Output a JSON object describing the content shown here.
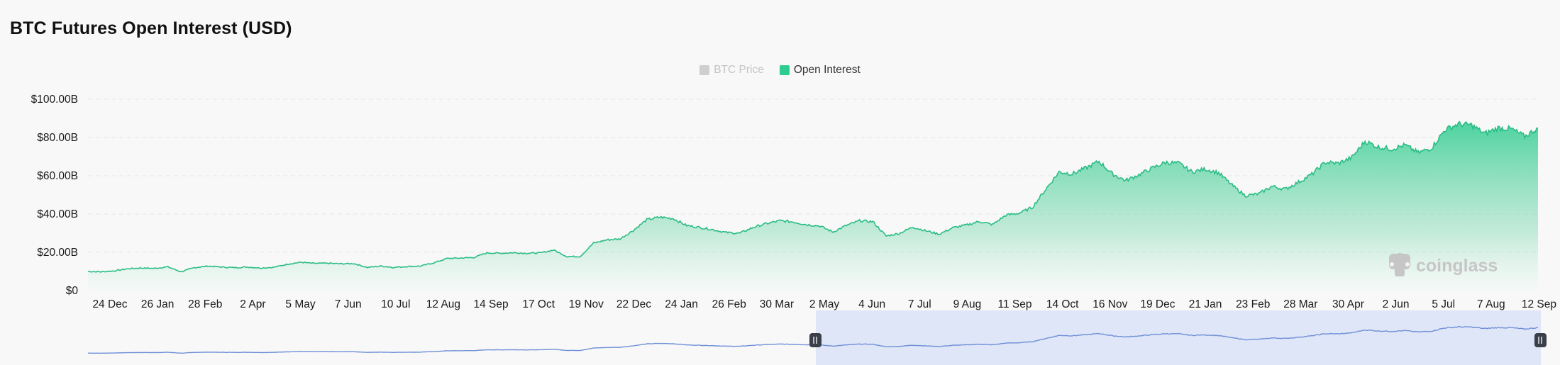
{
  "page": {
    "title": "BTC Futures Open Interest (USD)"
  },
  "legend": {
    "btc_price": "BTC Price",
    "open_interest": "Open Interest"
  },
  "watermark": "coinglass",
  "colors": {
    "oi_line": "#2bbd85",
    "oi_fill_top": "#2ecc8f",
    "legend_inactive": "#cfcfcf",
    "navigator_line": "#6f8fd8",
    "navigator_selection": "#dfe6f7"
  },
  "chart_data": {
    "type": "area",
    "title": "BTC Futures Open Interest (USD)",
    "ylim": [
      0,
      100
    ],
    "y_ticks": [
      "$0",
      "$20.00B",
      "$40.00B",
      "$60.00B",
      "$80.00B",
      "$100.00B"
    ],
    "x_ticks": [
      "24 Dec",
      "26 Jan",
      "28 Feb",
      "2 Apr",
      "5 May",
      "7 Jun",
      "10 Jul",
      "12 Aug",
      "14 Sep",
      "17 Oct",
      "19 Nov",
      "22 Dec",
      "24 Jan",
      "26 Feb",
      "30 Mar",
      "2 May",
      "4 Jun",
      "7 Jul",
      "9 Aug",
      "11 Sep",
      "14 Oct",
      "16 Nov",
      "19 Dec",
      "21 Jan",
      "23 Feb",
      "28 Mar",
      "30 Apr",
      "2 Jun",
      "5 Jul",
      "7 Aug",
      "12 Sep"
    ],
    "grid": true,
    "legend_position": "top-center",
    "series": [
      {
        "name": "BTC Price",
        "visible": false,
        "values": []
      },
      {
        "name": "Open Interest",
        "unit": "USD billions",
        "values": [
          10.0,
          9.8,
          10.3,
          11.4,
          11.8,
          11.6,
          12.4,
          9.8,
          12.0,
          12.8,
          12.3,
          12.0,
          12.3,
          11.8,
          12.2,
          13.8,
          14.8,
          14.2,
          14.3,
          14.0,
          14.1,
          12.1,
          12.8,
          12.1,
          12.6,
          12.8,
          14.5,
          16.8,
          17.0,
          17.3,
          19.7,
          19.5,
          19.8,
          19.5,
          19.7,
          21.2,
          17.8,
          17.8,
          24.8,
          26.5,
          27.0,
          31.5,
          37.0,
          38.4,
          37.6,
          34.0,
          33.0,
          31.8,
          30.3,
          30.0,
          33.0,
          35.0,
          36.5,
          35.9,
          34.5,
          33.8,
          30.6,
          34.0,
          36.5,
          36.0,
          28.5,
          29.9,
          33.2,
          31.2,
          29.5,
          32.8,
          34.2,
          36.1,
          34.5,
          39.4,
          40.5,
          43.5,
          53.0,
          62.0,
          61.0,
          64.0,
          67.5,
          61.0,
          57.5,
          60.5,
          64.0,
          67.0,
          66.5,
          62.0,
          63.5,
          61.5,
          55.0,
          49.6,
          50.5,
          54.5,
          53.0,
          56.6,
          60.8,
          67.0,
          66.5,
          69.5,
          78.0,
          75.0,
          74.0,
          76.0,
          72.0,
          74.5,
          84.0,
          87.0,
          86.5,
          82.0,
          85.0,
          84.5,
          80.5,
          85.0
        ]
      }
    ],
    "navigator": {
      "selected_range": [
        "2 May",
        "12 Sep"
      ]
    }
  }
}
